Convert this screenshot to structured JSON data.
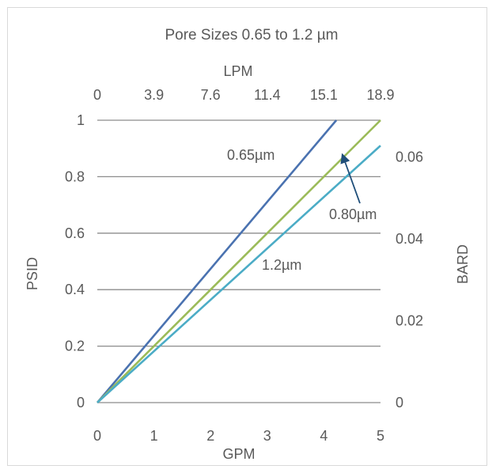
{
  "chart_data": {
    "type": "line",
    "title": "Pore Sizes 0.65 to 1.2 µm",
    "xlabel": "GPM",
    "ylabel": "PSID",
    "x2label": "LPM",
    "y2label": "BARD",
    "xlim": [
      0,
      5
    ],
    "ylim": [
      0,
      1
    ],
    "x_ticks": [
      "0",
      "1",
      "2",
      "3",
      "4",
      "5"
    ],
    "y_ticks": [
      "0",
      "0.2",
      "0.4",
      "0.6",
      "0.8",
      "1"
    ],
    "x2_ticks": [
      "0",
      "3.9",
      "7.6",
      "11.4",
      "15.1",
      "18.9"
    ],
    "y2_ticks": [
      "0",
      "0.02",
      "0.04",
      "0.06"
    ],
    "y2lim": [
      0,
      0.06895
    ],
    "grid": "horizontal",
    "series": [
      {
        "name": "0.65µm",
        "color": "#4a72b0",
        "x": [
          0,
          4.22
        ],
        "y": [
          0,
          1.0
        ]
      },
      {
        "name": "0.80µm",
        "color": "#9bbb59",
        "x": [
          0,
          5.0
        ],
        "y": [
          0,
          1.0
        ]
      },
      {
        "name": "1.2µm",
        "color": "#4bacc6",
        "x": [
          0,
          5.0
        ],
        "y": [
          0,
          0.91
        ]
      }
    ],
    "annotations": [
      {
        "text": "0.65µm",
        "series": "0.65µm"
      },
      {
        "text": "0.80µm",
        "series": "0.80µm",
        "arrow": true
      },
      {
        "text": "1.2µm",
        "series": "1.2µm"
      }
    ]
  }
}
